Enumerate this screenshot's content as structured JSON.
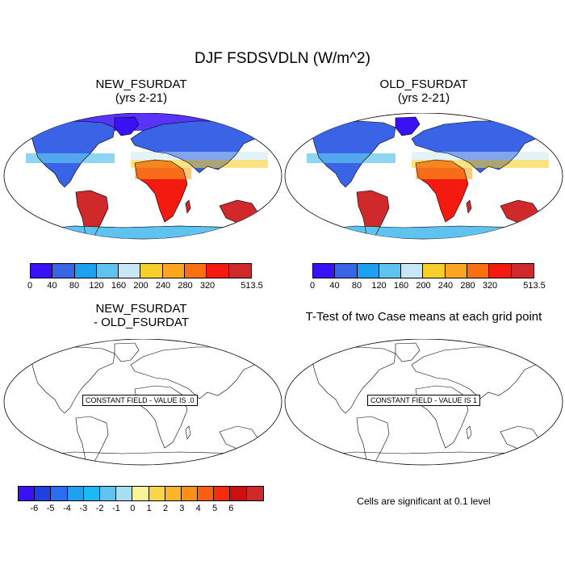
{
  "figure": {
    "title": "DJF FSDSVDLN (W/m^2)"
  },
  "panels": {
    "top_left": {
      "title_line1": "NEW_FSURDAT",
      "title_line2": "(yrs 2-21)"
    },
    "top_right": {
      "title_line1": "OLD_FSURDAT",
      "title_line2": "(yrs 2-21)"
    },
    "bottom_left": {
      "title_line1": "NEW_FSURDAT",
      "title_line2": "- OLD_FSURDAT",
      "message": "CONSTANT FIELD - VALUE IS .0"
    },
    "bottom_right": {
      "title": "T-Test of two Case means at each grid point",
      "message": "CONSTANT FIELD - VALUE IS 1",
      "note": "Cells are significant at 0.1 level"
    }
  },
  "colorbars": {
    "field": {
      "colors": [
        "#3a10f5",
        "#3a64e6",
        "#1f9ff0",
        "#5ec3ee",
        "#c8e7f6",
        "#f7cf2d",
        "#fba521",
        "#fa6f10",
        "#f51a10",
        "#d0292c"
      ],
      "labels": [
        "0",
        "40",
        "80",
        "120",
        "160",
        "200",
        "240",
        "280",
        "320",
        "513.5"
      ]
    },
    "difference": {
      "colors": [
        "#3a10f5",
        "#2140e3",
        "#2a6df0",
        "#1f9ff0",
        "#1bb9f6",
        "#5ec3ee",
        "#a6dff3",
        "#fbf29a",
        "#f9d54a",
        "#fbb42b",
        "#fa9018",
        "#fa5e10",
        "#f52c10",
        "#cc0f10",
        "#d0292c"
      ],
      "labels": [
        "-6",
        "-5",
        "-4",
        "-3",
        "-2",
        "-1",
        "0",
        "1",
        "2",
        "3",
        "4",
        "5",
        "6"
      ]
    }
  },
  "chart_data": {
    "type": "heatmap",
    "title": "DJF FSDSVDLN (W/m^2)",
    "panels": [
      {
        "name": "NEW_FSURDAT (yrs 2-21)",
        "units": "W/m^2",
        "contour_levels": [
          40,
          80,
          120,
          160,
          200,
          240,
          280,
          320
        ],
        "colorbar_max": 513.5
      },
      {
        "name": "OLD_FSURDAT (yrs 2-21)",
        "units": "W/m^2",
        "contour_levels": [
          40,
          80,
          120,
          160,
          200,
          240,
          280,
          320
        ],
        "colorbar_max": 513.5
      },
      {
        "name": "NEW_FSURDAT - OLD_FSURDAT",
        "constant_value": 0,
        "contour_levels": [
          -6,
          -5,
          -4,
          -3,
          -2,
          -1,
          0,
          1,
          2,
          3,
          4,
          5,
          6
        ]
      },
      {
        "name": "T-Test of two Case means at each grid point",
        "constant_value": 1,
        "significance_level": 0.1
      }
    ]
  }
}
